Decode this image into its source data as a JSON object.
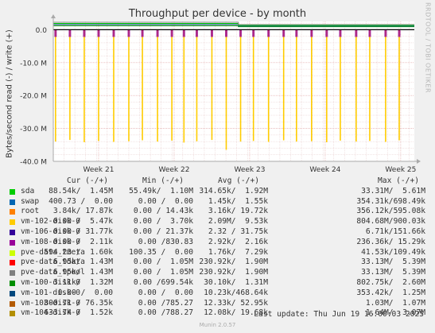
{
  "title": "Throughput per device - by month",
  "ylabel": "Bytes/second read (-) / write (+)",
  "watermark": "RRDTOOL / TOBI OETIKER",
  "chart_data": {
    "type": "area",
    "title": "Throughput per device - by month",
    "ylabel": "Bytes/second read (-) / write (+)",
    "ylim": [
      -40000000,
      2500000
    ],
    "yticks": [
      {
        "value": 0,
        "label": "0.0"
      },
      {
        "value": -10000000,
        "label": "-10.0 M"
      },
      {
        "value": -20000000,
        "label": "-20.0 M"
      },
      {
        "value": -30000000,
        "label": "-30.0 M"
      },
      {
        "value": -40000000,
        "label": "-40.0 M"
      }
    ],
    "xticks": [
      "Week 21",
      "Week 22",
      "Week 23",
      "Week 24",
      "Week 25"
    ],
    "grid": true,
    "read_spike_weeks": [
      20.43,
      20.62,
      20.81,
      21.0,
      21.2,
      21.4,
      21.58,
      21.78,
      21.97,
      22.13,
      22.3,
      22.5,
      22.69,
      22.88,
      23.05,
      23.25,
      23.45,
      23.62,
      23.82,
      24.02,
      24.2,
      24.41,
      24.59,
      24.8,
      24.98
    ],
    "read_spike_values": [
      -34000000,
      -33500000,
      -34200000,
      -33800000,
      -34100000,
      -33900000,
      -33600000,
      -34000000,
      -33700000,
      -34300000,
      -33900000,
      -33500000,
      -36500000,
      -34000000,
      -33800000,
      -34100000,
      -33600000,
      -34000000,
      -33900000,
      -34200000,
      -33700000,
      -34000000,
      -33800000,
      -34100000,
      -33600000
    ],
    "write_band_values": {
      "pre_week_23": 1200000,
      "post_week_23": 900000
    },
    "series_colors": {
      "sda": "#00cc00",
      "swap": "#0066b3",
      "root": "#ff8000",
      "vm-102-disk-0": "#ffcc00",
      "vm-106-disk-0": "#330099",
      "vm-108-disk-0": "#990099",
      "pve-data_tmeta": "#ccff00",
      "pve-data_tdata": "#ff0000",
      "pve-data_tpool": "#808080",
      "vm-100-disk-0": "#008f00",
      "vm-101-disk-0": "#00487d",
      "vm-103-disk-0": "#b35a00",
      "vm-104-disk-0": "#b38f00"
    }
  },
  "legend": {
    "headers": {
      "cur": "Cur (-/+)",
      "min": "Min (-/+)",
      "avg": "Avg (-/+)",
      "max": "Max (-/+)"
    },
    "rows": [
      {
        "name": "sda",
        "color": "#00cc00",
        "cur": "88.54k/  1.45M",
        "min": "55.49k/  1.10M",
        "avg": "314.65k/  1.92M",
        "max": "33.31M/  5.61M"
      },
      {
        "name": "swap",
        "color": "#0066b3",
        "cur": "400.73 /  0.00",
        "min": "0.00 /  0.00",
        "avg": "1.45k/  1.55k",
        "max": "354.31k/698.49k"
      },
      {
        "name": "root",
        "color": "#ff8000",
        "cur": "3.84k/ 17.87k",
        "min": "0.00 / 14.43k",
        "avg": "3.16k/ 19.72k",
        "max": "356.12k/595.08k"
      },
      {
        "name": "vm-102-disk-0",
        "color": "#ffcc00",
        "cur": "0.00 /  5.47k",
        "min": "0.00 /  3.70k",
        "avg": "2.09M/  9.53k",
        "max": "804.68M/900.03k"
      },
      {
        "name": "vm-106-disk-0",
        "color": "#330099",
        "cur": "0.00 / 31.77k",
        "min": "0.00 / 21.37k",
        "avg": "2.32 / 31.75k",
        "max": "6.71k/151.66k"
      },
      {
        "name": "vm-108-disk-0",
        "color": "#990099",
        "cur": "0.00 /  2.11k",
        "min": "0.00 /830.83",
        "avg": "2.92k/  2.16k",
        "max": "236.36k/ 15.29k"
      },
      {
        "name": "pve-data_tmeta",
        "color": "#ccff00",
        "cur": "594.23 /  1.60k",
        "min": "100.35 /  0.00",
        "avg": "1.76k/  7.29k",
        "max": "41.53k/109.49k"
      },
      {
        "name": "pve-data_tdata",
        "color": "#ff0000",
        "cur": "6.95k/  1.43M",
        "min": "0.00 /  1.05M",
        "avg": "230.92k/  1.90M",
        "max": "33.13M/  5.39M"
      },
      {
        "name": "pve-data_tpool",
        "color": "#808080",
        "cur": "6.95k/  1.43M",
        "min": "0.00 /  1.05M",
        "avg": "230.92k/  1.90M",
        "max": "33.13M/  5.39M"
      },
      {
        "name": "vm-100-disk-0",
        "color": "#008f00",
        "cur": "3.11k/  1.32M",
        "min": "0.00 /699.54k",
        "avg": "30.10k/  1.31M",
        "max": "802.75k/  2.60M"
      },
      {
        "name": "vm-101-disk-0",
        "color": "#00487d",
        "cur": "0.00 /  0.00",
        "min": "0.00 /  0.00",
        "avg": "10.23k/468.64k",
        "max": "353.42k/  1.25M"
      },
      {
        "name": "vm-103-disk-0",
        "color": "#b35a00",
        "cur": "800.71 / 76.35k",
        "min": "0.00 /785.27",
        "avg": "12.33k/ 52.95k",
        "max": "1.03M/  1.07M"
      },
      {
        "name": "vm-104-disk-0",
        "color": "#b38f00",
        "cur": "633.74 /  1.52k",
        "min": "0.00 /788.27",
        "avg": "12.08k/ 19.68k",
        "max": "1.64M/  3.07M"
      }
    ]
  },
  "last_update": "Last update: Thu Jun 19 16:00:03 2025",
  "munin_version": "Munin 2.0.57"
}
